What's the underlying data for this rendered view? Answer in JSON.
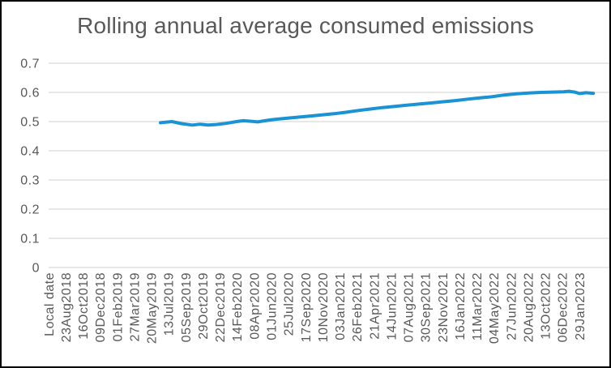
{
  "colors": {
    "line": "#1a93d4",
    "grid": "#d9d9d9",
    "plot_border": "#d9d9d9",
    "axis_text": "#595959",
    "title_text": "#595959",
    "frame_border": "#000000",
    "background": "#ffffff"
  },
  "chart_data": {
    "type": "line",
    "title": "Rolling annual average consumed emissions",
    "x_axis_name": "Local date",
    "x_tick_labels": [
      "Local date",
      "23Aug2018",
      "16Oct2018",
      "09Dec2018",
      "01Feb2019",
      "27Mar2019",
      "20May2019",
      "13Jul2019",
      "05Sep2019",
      "29Oct2019",
      "22Dec2019",
      "14Feb2020",
      "08Apr2020",
      "01Jun2020",
      "25Jul2020",
      "17Sep2020",
      "10Nov2020",
      "03Jan2021",
      "26Feb2021",
      "21Apr2021",
      "14Jun2021",
      "07Aug2021",
      "30Sep2021",
      "23Nov2021",
      "16Jan2022",
      "11Mar2022",
      "04May2022",
      "27Jun2022",
      "20Aug2022",
      "13Oct2022",
      "06Dec2022",
      "29Jan2023"
    ],
    "x_tick_interval_days": 54,
    "y_tick_labels": [
      "0.7",
      "0.6",
      "0.5",
      "0.4",
      "0.3",
      "0.2",
      "0.1",
      "0"
    ],
    "ylim": [
      0,
      0.7
    ],
    "grid": "horizontal",
    "legend": "none",
    "series": [
      {
        "name": "rolling-annual-average-consumed-emissions",
        "points": [
          [
            "17Jun2019",
            0.496
          ],
          [
            "23Jul2019",
            0.5
          ],
          [
            "22Aug2019",
            0.493
          ],
          [
            "25Sep2019",
            0.488
          ],
          [
            "20Oct2019",
            0.491
          ],
          [
            "15Nov2019",
            0.488
          ],
          [
            "10Dec2019",
            0.49
          ],
          [
            "10Jan2020",
            0.494
          ],
          [
            "12Feb2020",
            0.5
          ],
          [
            "04Mar2020",
            0.503
          ],
          [
            "29Mar2020",
            0.501
          ],
          [
            "19Apr2020",
            0.499
          ],
          [
            "12May2020",
            0.503
          ],
          [
            "06Jun2020",
            0.507
          ],
          [
            "15Jul2020",
            0.511
          ],
          [
            "22Aug2020",
            0.515
          ],
          [
            "29Sep2020",
            0.519
          ],
          [
            "07Nov2020",
            0.523
          ],
          [
            "15Dec2020",
            0.527
          ],
          [
            "22Jan2021",
            0.532
          ],
          [
            "02Mar2021",
            0.538
          ],
          [
            "09Apr2021",
            0.543
          ],
          [
            "17May2021",
            0.548
          ],
          [
            "25Jun2021",
            0.552
          ],
          [
            "02Aug2021",
            0.556
          ],
          [
            "09Sep2021",
            0.56
          ],
          [
            "18Oct2021",
            0.564
          ],
          [
            "25Nov2021",
            0.568
          ],
          [
            "02Jan2022",
            0.572
          ],
          [
            "10Feb2022",
            0.577
          ],
          [
            "20Mar2022",
            0.581
          ],
          [
            "27Apr2022",
            0.585
          ],
          [
            "05Jun2022",
            0.591
          ],
          [
            "13Jul2022",
            0.595
          ],
          [
            "21Aug2022",
            0.598
          ],
          [
            "28Sep2022",
            0.6
          ],
          [
            "05Nov2022",
            0.601
          ],
          [
            "09Dec2022",
            0.602
          ],
          [
            "26Dec2022",
            0.604
          ],
          [
            "13Jan2023",
            0.601
          ],
          [
            "29Jan2023",
            0.596
          ],
          [
            "18Feb2023",
            0.599
          ],
          [
            "13Mar2023",
            0.597
          ]
        ]
      }
    ]
  }
}
